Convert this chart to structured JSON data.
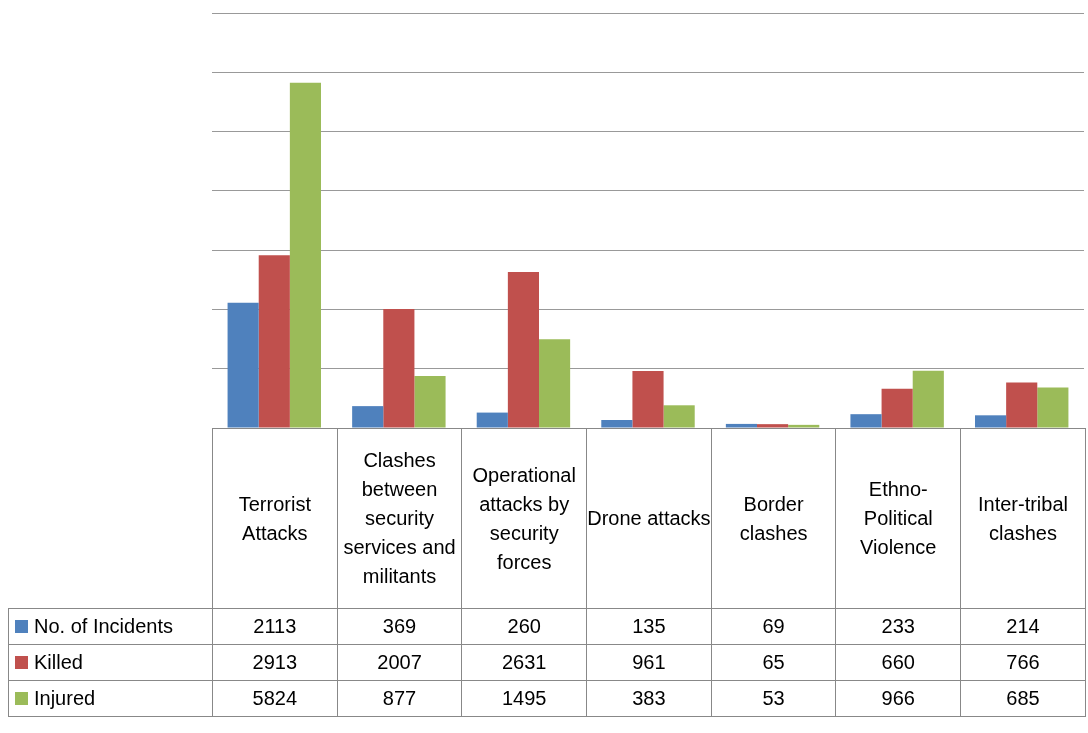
{
  "chart_data": {
    "type": "bar",
    "categories": [
      "Terrorist Attacks",
      "Clashes between security services and militants",
      "Operational attacks by security forces",
      "Drone attacks",
      "Border clashes",
      "Ethno-Political Violence",
      "Inter-tribal clashes"
    ],
    "series": [
      {
        "name": "No. of Incidents",
        "color": "#4f81bd",
        "values": [
          2113,
          369,
          260,
          135,
          69,
          233,
          214
        ]
      },
      {
        "name": "Killed",
        "color": "#c0504d",
        "values": [
          2913,
          2007,
          2631,
          961,
          65,
          660,
          766
        ]
      },
      {
        "name": "Injured",
        "color": "#9bbb59",
        "values": [
          5824,
          877,
          1495,
          383,
          53,
          966,
          685
        ]
      }
    ],
    "ylim": [
      0,
      7000
    ],
    "grid": "y",
    "data_labels": true,
    "legend": "bottom"
  }
}
